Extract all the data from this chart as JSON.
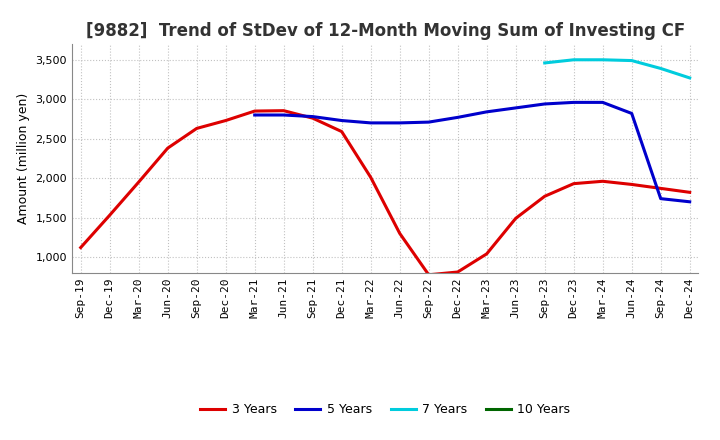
{
  "title": "[9882]  Trend of StDev of 12-Month Moving Sum of Investing CF",
  "ylabel": "Amount (million yen)",
  "ylim": [
    800,
    3700
  ],
  "yticks": [
    1000,
    1500,
    2000,
    2500,
    3000,
    3500
  ],
  "background_color": "#ffffff",
  "plot_bg_color": "#ffffff",
  "grid_color": "#bbbbbb",
  "series": {
    "3 Years": {
      "color": "#dd0000",
      "x": [
        "Sep-19",
        "Dec-19",
        "Mar-20",
        "Jun-20",
        "Sep-20",
        "Dec-20",
        "Mar-21",
        "Jun-21",
        "Sep-21",
        "Dec-21",
        "Mar-22",
        "Jun-22",
        "Sep-22",
        "Dec-22",
        "Mar-23",
        "Jun-23",
        "Sep-23",
        "Dec-23",
        "Mar-24",
        "Jun-24",
        "Sep-24",
        "Dec-24"
      ],
      "y": [
        1120,
        1530,
        1950,
        2380,
        2630,
        2730,
        2850,
        2855,
        2760,
        2590,
        2010,
        1300,
        775,
        810,
        1040,
        1490,
        1770,
        1930,
        1960,
        1920,
        1870,
        1820
      ]
    },
    "5 Years": {
      "color": "#0000cc",
      "x": [
        "Mar-21",
        "Jun-21",
        "Sep-21",
        "Dec-21",
        "Mar-22",
        "Jun-22",
        "Sep-22",
        "Dec-22",
        "Mar-23",
        "Jun-23",
        "Sep-23",
        "Dec-23",
        "Mar-24",
        "Jun-24",
        "Sep-24",
        "Dec-24"
      ],
      "y": [
        2800,
        2800,
        2780,
        2730,
        2700,
        2700,
        2710,
        2770,
        2840,
        2890,
        2940,
        2960,
        2960,
        2820,
        1740,
        1700
      ]
    },
    "7 Years": {
      "color": "#00ccdd",
      "x": [
        "Sep-23",
        "Dec-23",
        "Mar-24",
        "Jun-24",
        "Sep-24",
        "Dec-24"
      ],
      "y": [
        3460,
        3500,
        3500,
        3490,
        3390,
        3270
      ]
    },
    "10 Years": {
      "color": "#006600",
      "x": [],
      "y": []
    }
  },
  "x_labels": [
    "Sep-19",
    "Dec-19",
    "Mar-20",
    "Jun-20",
    "Sep-20",
    "Dec-20",
    "Mar-21",
    "Jun-21",
    "Sep-21",
    "Dec-21",
    "Mar-22",
    "Jun-22",
    "Sep-22",
    "Dec-22",
    "Mar-23",
    "Jun-23",
    "Sep-23",
    "Dec-23",
    "Mar-24",
    "Jun-24",
    "Sep-24",
    "Dec-24"
  ],
  "title_fontsize": 12,
  "label_fontsize": 9,
  "tick_fontsize": 8,
  "legend_fontsize": 9,
  "linewidth": 2.2
}
